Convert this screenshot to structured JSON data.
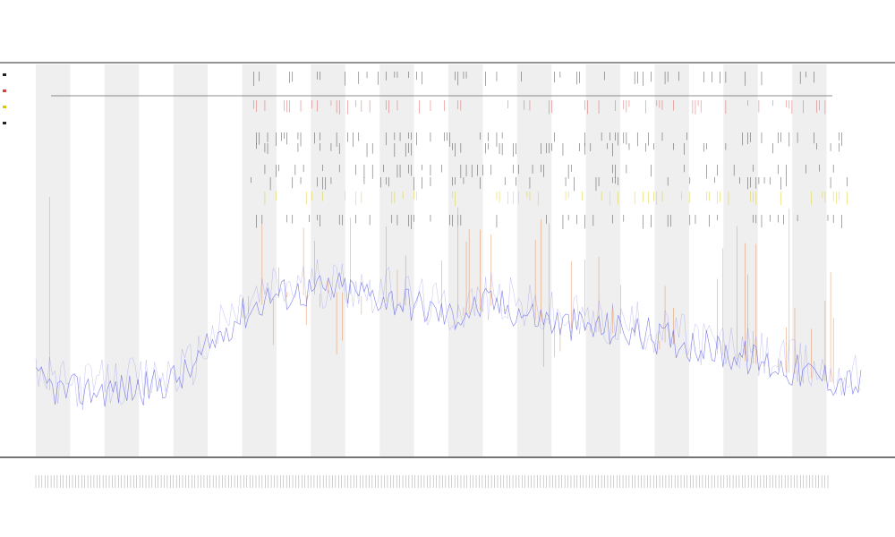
{
  "chart_data": {
    "type": "line",
    "title": "",
    "subtitles": [
      "",
      ""
    ],
    "xlabel": "",
    "ylabel": "",
    "x_count": 300,
    "bands": [
      0,
      2,
      4,
      6,
      8,
      10,
      12,
      14,
      16,
      18,
      20,
      22
    ],
    "band_count": 24,
    "ylim": [
      0,
      100
    ],
    "colors": {
      "baseline": "#6a6ae8",
      "spike": "#e06a1e",
      "tick_black": "#222222",
      "tick_red": "#d94040",
      "tick_yellow": "#d8c800",
      "band": "#efefef"
    },
    "baseline_profile": [
      {
        "x": 0,
        "y": 12
      },
      {
        "x": 10,
        "y": 9
      },
      {
        "x": 40,
        "y": 10
      },
      {
        "x": 55,
        "y": 14
      },
      {
        "x": 70,
        "y": 28
      },
      {
        "x": 85,
        "y": 36
      },
      {
        "x": 110,
        "y": 38
      },
      {
        "x": 135,
        "y": 34
      },
      {
        "x": 150,
        "y": 30
      },
      {
        "x": 165,
        "y": 34
      },
      {
        "x": 190,
        "y": 28
      },
      {
        "x": 215,
        "y": 26
      },
      {
        "x": 240,
        "y": 22
      },
      {
        "x": 260,
        "y": 18
      },
      {
        "x": 280,
        "y": 14
      },
      {
        "x": 299,
        "y": 11
      }
    ],
    "track_rows": 8,
    "legend": []
  }
}
